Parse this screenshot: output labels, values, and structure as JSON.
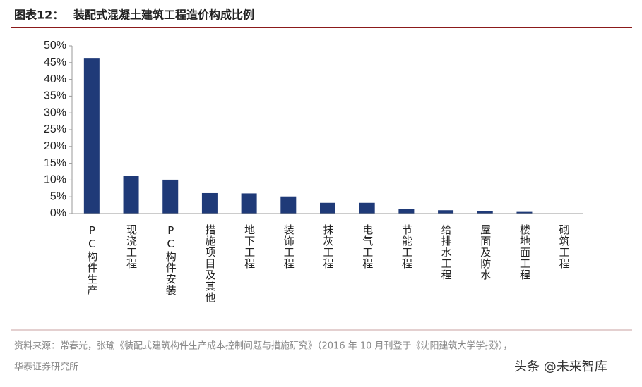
{
  "chart_data": {
    "type": "bar",
    "label": "图表12：",
    "title": "装配式混凝土建筑工程造价构成比例",
    "categories": [
      "PC构件生产",
      "现浇工程",
      "PC构件安装",
      "措施项目及其他",
      "地下工程",
      "装饰工程",
      "抹灰工程",
      "电气工程",
      "节能工程",
      "给排水工程",
      "屋面及防水",
      "楼地面工程",
      "砌筑工程"
    ],
    "values": [
      46.4,
      11.2,
      10.1,
      6.1,
      6.0,
      5.1,
      3.2,
      3.2,
      1.3,
      1.0,
      0.8,
      0.5,
      0.1
    ],
    "color": "#1f3a78",
    "ylim": [
      0,
      50
    ],
    "yticks": [
      {
        "value": 0,
        "label": "0%"
      },
      {
        "value": 5,
        "label": "5%"
      },
      {
        "value": 10,
        "label": "10%"
      },
      {
        "value": 15,
        "label": "15%"
      },
      {
        "value": 20,
        "label": "20%"
      },
      {
        "value": 25,
        "label": "25%"
      },
      {
        "value": 30,
        "label": "30%"
      },
      {
        "value": 35,
        "label": "35%"
      },
      {
        "value": 40,
        "label": "40%"
      },
      {
        "value": 45,
        "label": "45%"
      },
      {
        "value": 50,
        "label": "50%"
      }
    ],
    "grid": false,
    "source": [
      "资料来源：常春光，张瑜《装配式建筑构件生产成本控制问题与措施研究》（2016 年 10 月刊登于《沈阳建筑大学学报》），",
      "华泰证券研究所"
    ],
    "watermark": "头条 @未来智库"
  }
}
